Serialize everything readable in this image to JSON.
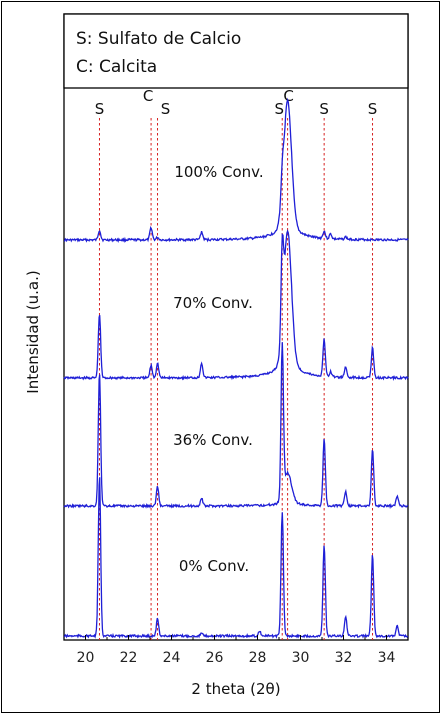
{
  "chart_data": {
    "type": "line",
    "title": "",
    "xlabel": "2 theta (2θ)",
    "ylabel": "Intensidad (u.a.)",
    "xlim": [
      19,
      35
    ],
    "xticks": [
      20,
      22,
      24,
      26,
      28,
      30,
      32,
      34
    ],
    "legend": {
      "placement": "top-left",
      "entries": [
        "S: Sulfato de Calcio",
        "C: Calcita"
      ]
    },
    "reference_lines": [
      {
        "label": "S",
        "x": 20.65
      },
      {
        "label": "C",
        "x": 23.05
      },
      {
        "label": "S",
        "x": 23.35
      },
      {
        "label": "S",
        "x": 29.15
      },
      {
        "label": "C",
        "x": 29.4
      },
      {
        "label": "S",
        "x": 31.1
      },
      {
        "label": "S",
        "x": 33.35
      }
    ],
    "series": [
      {
        "name": "100% Conv.",
        "color": "#1f1fd6",
        "peaks": [
          [
            20.65,
            0.04
          ],
          [
            23.05,
            0.05
          ],
          [
            23.35,
            0.01
          ],
          [
            25.4,
            0.03
          ],
          [
            29.15,
            0.08
          ],
          [
            29.4,
            0.5
          ],
          [
            31.1,
            0.03
          ],
          [
            31.4,
            0.02
          ],
          [
            32.1,
            0.01
          ]
        ]
      },
      {
        "name": "70% Conv.",
        "color": "#1f1fd6",
        "peaks": [
          [
            20.65,
            0.26
          ],
          [
            23.05,
            0.05
          ],
          [
            23.35,
            0.06
          ],
          [
            25.4,
            0.06
          ],
          [
            29.15,
            0.32
          ],
          [
            29.4,
            0.53
          ],
          [
            31.1,
            0.15
          ],
          [
            31.4,
            0.02
          ],
          [
            32.1,
            0.04
          ],
          [
            33.35,
            0.12
          ]
        ]
      },
      {
        "name": "36% Conv.",
        "color": "#1f1fd6",
        "peaks": [
          [
            20.65,
            0.54
          ],
          [
            23.35,
            0.08
          ],
          [
            25.4,
            0.03
          ],
          [
            29.15,
            0.6
          ],
          [
            29.4,
            0.12
          ],
          [
            31.1,
            0.27
          ],
          [
            32.1,
            0.06
          ],
          [
            33.35,
            0.23
          ],
          [
            34.5,
            0.04
          ]
        ]
      },
      {
        "name": "0% Conv.",
        "color": "#1f1fd6",
        "peaks": [
          [
            20.65,
            0.65
          ],
          [
            23.35,
            0.07
          ],
          [
            25.4,
            0.01
          ],
          [
            28.1,
            0.02
          ],
          [
            29.15,
            0.5
          ],
          [
            31.1,
            0.37
          ],
          [
            32.1,
            0.08
          ],
          [
            33.35,
            0.33
          ],
          [
            34.5,
            0.04
          ]
        ]
      }
    ]
  }
}
